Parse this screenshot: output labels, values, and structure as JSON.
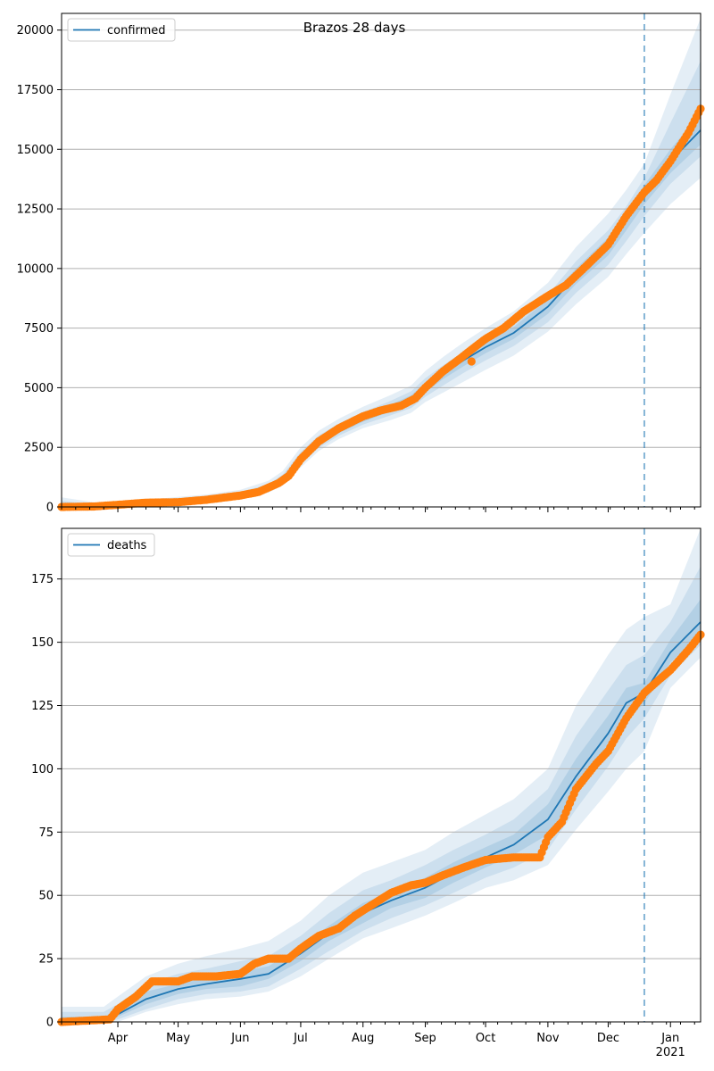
{
  "figure_title": "Brazos 28 days",
  "colors": {
    "model_line": "#1f77b4",
    "observed": "#ff7f0e",
    "band": "#1f77b4",
    "forecast_marker": "#1f77b4",
    "grid": "#b0b0b0"
  },
  "chart_data": [
    {
      "type": "line",
      "title": "Brazos 28 days",
      "xlabel": "",
      "ylabel": "",
      "x_unit": "date",
      "x_ticks": [
        "Apr",
        "May",
        "Jun",
        "Jul",
        "Aug",
        "Sep",
        "Oct",
        "Nov",
        "Dec",
        "Jan"
      ],
      "x_year_label": "2021",
      "forecast_start": "2020-12-19",
      "xlim": [
        "2020-03-04",
        "2021-01-16"
      ],
      "ylim": [
        0,
        20700
      ],
      "y_ticks": [
        0,
        2500,
        5000,
        7500,
        10000,
        12500,
        15000,
        17500,
        20000
      ],
      "grid": "horizontal",
      "legend": "top-left",
      "series": [
        {
          "name": "confirmed",
          "style": "line",
          "x": [
            "2020-03-04",
            "2020-03-20",
            "2020-04-01",
            "2020-04-15",
            "2020-05-01",
            "2020-05-15",
            "2020-06-01",
            "2020-06-15",
            "2020-06-22",
            "2020-07-01",
            "2020-07-10",
            "2020-07-20",
            "2020-08-01",
            "2020-08-15",
            "2020-08-25",
            "2020-09-01",
            "2020-09-10",
            "2020-09-20",
            "2020-10-01",
            "2020-10-15",
            "2020-11-01",
            "2020-11-15",
            "2020-12-01",
            "2020-12-10",
            "2020-12-19",
            "2021-01-01",
            "2021-01-16"
          ],
          "y": [
            0,
            10,
            60,
            160,
            250,
            340,
            500,
            800,
            1150,
            2000,
            2700,
            3200,
            3700,
            4150,
            4500,
            5000,
            5600,
            6150,
            6700,
            7300,
            8400,
            9700,
            10900,
            12000,
            13100,
            14500,
            15800
          ]
        },
        {
          "name": "",
          "style": "markers",
          "x": [
            "2020-03-04",
            "2020-03-20",
            "2020-04-01",
            "2020-04-15",
            "2020-05-01",
            "2020-05-15",
            "2020-06-01",
            "2020-06-10",
            "2020-06-20",
            "2020-06-25",
            "2020-07-01",
            "2020-07-10",
            "2020-07-20",
            "2020-08-01",
            "2020-08-10",
            "2020-08-20",
            "2020-08-27",
            "2020-09-01",
            "2020-09-10",
            "2020-09-18",
            "2020-09-24",
            "2020-10-01",
            "2020-10-10",
            "2020-10-20",
            "2020-11-01",
            "2020-11-10",
            "2020-11-20",
            "2020-12-01",
            "2020-12-10",
            "2020-12-19",
            "2020-12-25",
            "2021-01-01",
            "2021-01-10",
            "2021-01-16"
          ],
          "y": [
            0,
            20,
            90,
            180,
            200,
            300,
            480,
            630,
            1000,
            1300,
            2000,
            2750,
            3300,
            3800,
            4050,
            4250,
            4550,
            5000,
            5700,
            6200,
            6600,
            7050,
            7500,
            8200,
            8850,
            9300,
            10100,
            11000,
            12200,
            13200,
            13700,
            14500,
            15700,
            16700
          ],
          "outliers": [
            {
              "x": "2020-09-24",
              "y": 6100
            }
          ]
        }
      ],
      "bands": [
        {
          "level": "outer",
          "lower": [
            0,
            0,
            40,
            100,
            180,
            250,
            380,
            600,
            900,
            1650,
            2350,
            2850,
            3300,
            3650,
            3950,
            4400,
            4800,
            5250,
            5750,
            6350,
            7350,
            8500,
            9650,
            10600,
            11500,
            12700,
            13800
          ],
          "upper": [
            400,
            200,
            150,
            300,
            420,
            520,
            720,
            1100,
            1500,
            2500,
            3200,
            3700,
            4200,
            4700,
            5100,
            5700,
            6300,
            6900,
            7500,
            8200,
            9400,
            10900,
            12300,
            13300,
            14400,
            17300,
            20500
          ]
        },
        {
          "level": "mid",
          "lower": [
            0,
            0,
            45,
            120,
            200,
            280,
            420,
            660,
            980,
            1780,
            2480,
            2990,
            3450,
            3850,
            4150,
            4620,
            5100,
            5620,
            6150,
            6750,
            7750,
            8980,
            10150,
            11150,
            12200,
            13550,
            14700
          ],
          "upper": [
            250,
            120,
            100,
            240,
            340,
            430,
            620,
            960,
            1350,
            2300,
            3000,
            3500,
            3980,
            4460,
            4850,
            5400,
            5950,
            6500,
            7080,
            7750,
            8900,
            10300,
            11600,
            12600,
            13800,
            16100,
            18700
          ]
        },
        {
          "level": "inner",
          "lower": [
            0,
            0,
            52,
            140,
            225,
            310,
            460,
            730,
            1070,
            1900,
            2590,
            3100,
            3570,
            4010,
            4330,
            4820,
            5370,
            5900,
            6450,
            7050,
            8100,
            9350,
            10550,
            11600,
            12700,
            14000,
            15200
          ],
          "upper": [
            100,
            60,
            80,
            190,
            285,
            380,
            550,
            880,
            1250,
            2120,
            2820,
            3320,
            3840,
            4300,
            4690,
            5200,
            5780,
            6370,
            6940,
            7550,
            8700,
            10000,
            11300,
            12400,
            13500,
            15000,
            16500
          ]
        }
      ]
    },
    {
      "type": "line",
      "title": "",
      "xlabel": "",
      "ylabel": "",
      "x_unit": "date",
      "x_ticks": [
        "Apr",
        "May",
        "Jun",
        "Jul",
        "Aug",
        "Sep",
        "Oct",
        "Nov",
        "Dec",
        "Jan"
      ],
      "x_year_label": "2021",
      "forecast_start": "2020-12-19",
      "xlim": [
        "2020-03-04",
        "2021-01-16"
      ],
      "ylim": [
        0,
        195
      ],
      "y_ticks": [
        0,
        25,
        50,
        75,
        100,
        125,
        150,
        175
      ],
      "grid": "horizontal",
      "legend": "top-left",
      "series": [
        {
          "name": "deaths",
          "style": "line",
          "x": [
            "2020-03-04",
            "2020-03-25",
            "2020-04-01",
            "2020-04-15",
            "2020-05-01",
            "2020-05-15",
            "2020-06-01",
            "2020-06-15",
            "2020-07-01",
            "2020-07-15",
            "2020-08-01",
            "2020-08-15",
            "2020-09-01",
            "2020-09-15",
            "2020-10-01",
            "2020-10-15",
            "2020-11-01",
            "2020-11-15",
            "2020-12-01",
            "2020-12-10",
            "2020-12-19",
            "2021-01-01",
            "2021-01-16"
          ],
          "y": [
            0,
            0,
            3,
            9,
            13,
            15,
            17,
            19,
            27,
            35,
            43,
            48,
            53,
            59,
            65,
            70,
            80,
            97,
            114,
            126,
            130,
            146,
            158
          ]
        },
        {
          "name": "",
          "style": "markers",
          "x": [
            "2020-03-04",
            "2020-03-28",
            "2020-04-01",
            "2020-04-10",
            "2020-04-18",
            "2020-05-01",
            "2020-05-08",
            "2020-05-20",
            "2020-06-01",
            "2020-06-08",
            "2020-06-15",
            "2020-06-25",
            "2020-07-01",
            "2020-07-10",
            "2020-07-20",
            "2020-07-28",
            "2020-08-05",
            "2020-08-15",
            "2020-08-25",
            "2020-09-01",
            "2020-09-10",
            "2020-09-20",
            "2020-10-01",
            "2020-10-15",
            "2020-10-28",
            "2020-11-01",
            "2020-11-08",
            "2020-11-15",
            "2020-11-25",
            "2020-12-01",
            "2020-12-10",
            "2020-12-19",
            "2020-12-26",
            "2021-01-01",
            "2021-01-10",
            "2021-01-16"
          ],
          "y": [
            0,
            1,
            5,
            10,
            16,
            16,
            18,
            18,
            19,
            23,
            25,
            25,
            29,
            34,
            37,
            42,
            46,
            51,
            54,
            55,
            58,
            61,
            64,
            65,
            65,
            73,
            79,
            92,
            102,
            107,
            120,
            130,
            135,
            139,
            147,
            153
          ]
        }
      ],
      "bands": [
        {
          "level": "outer",
          "lower": [
            0,
            0,
            0,
            4,
            7,
            9,
            10,
            12,
            18,
            25,
            33,
            37,
            42,
            47,
            53,
            56,
            62,
            76,
            91,
            100,
            107,
            132,
            144
          ],
          "upper": [
            6,
            6,
            10,
            18,
            23,
            26,
            29,
            32,
            40,
            50,
            59,
            63,
            68,
            75,
            82,
            88,
            100,
            125,
            145,
            155,
            160,
            165,
            195
          ]
        },
        {
          "level": "mid",
          "lower": [
            0,
            0,
            1,
            5,
            9,
            11,
            12,
            14,
            21,
            28,
            36,
            41,
            46,
            51,
            57,
            61,
            68,
            84,
            101,
            112,
            120,
            137,
            149
          ],
          "upper": [
            4,
            4,
            7,
            15,
            19,
            21,
            24,
            26,
            34,
            43,
            52,
            56,
            62,
            68,
            74,
            80,
            92,
            113,
            131,
            141,
            145,
            158,
            180
          ]
        },
        {
          "level": "inner",
          "lower": [
            0,
            0,
            2,
            7,
            11,
            13,
            14,
            17,
            24,
            32,
            39,
            45,
            49,
            55,
            61,
            66,
            74,
            90,
            108,
            119,
            126,
            142,
            153
          ],
          "upper": [
            2,
            2,
            5,
            12,
            15,
            18,
            20,
            22,
            30,
            38,
            47,
            51,
            57,
            63,
            69,
            74,
            86,
            104,
            121,
            132,
            134,
            151,
            167
          ]
        }
      ]
    }
  ]
}
